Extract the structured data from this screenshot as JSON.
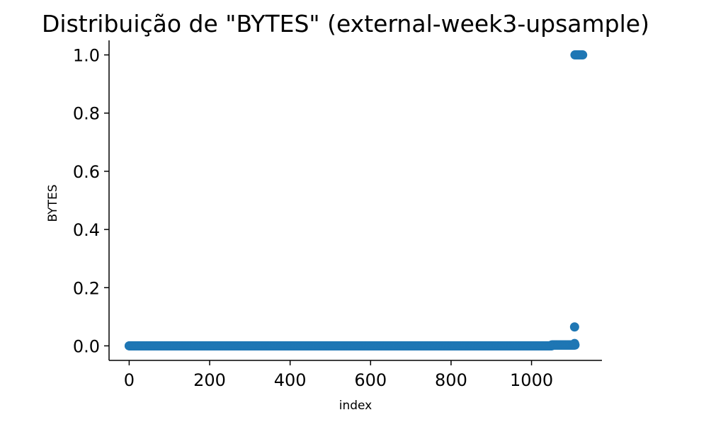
{
  "chart_data": {
    "type": "scatter",
    "title": "Distribuição de \"BYTES\" (external-week3-upsample)",
    "xlabel": "index",
    "ylabel": "BYTES",
    "xlim": [
      -50,
      1175
    ],
    "ylim": [
      -0.05,
      1.05
    ],
    "xticks": [
      0,
      200,
      400,
      600,
      800,
      1000
    ],
    "yticks": [
      0.0,
      0.2,
      0.4,
      0.6,
      0.8,
      1.0
    ],
    "xtick_labels": [
      "0",
      "200",
      "400",
      "600",
      "800",
      "1000"
    ],
    "ytick_labels": [
      "0.0",
      "0.2",
      "0.4",
      "0.6",
      "0.8",
      "1.0"
    ],
    "grid": false,
    "series": [
      {
        "color": "#1f77b4",
        "segments": [
          {
            "x_start": 0,
            "x_end": 1050,
            "step": 1,
            "y": 0.0
          },
          {
            "x_start": 1050,
            "x_end": 1108,
            "step": 1,
            "y": 0.003
          }
        ],
        "points": [
          {
            "x": 1107,
            "y": 0.065
          },
          {
            "x": 1107,
            "y": 0.008
          },
          {
            "x": 1108,
            "y": 1.0
          },
          {
            "x": 1112,
            "y": 1.0
          },
          {
            "x": 1116,
            "y": 1.0
          },
          {
            "x": 1120,
            "y": 1.0
          },
          {
            "x": 1124,
            "y": 1.0
          },
          {
            "x": 1127,
            "y": 1.0
          }
        ]
      }
    ]
  }
}
